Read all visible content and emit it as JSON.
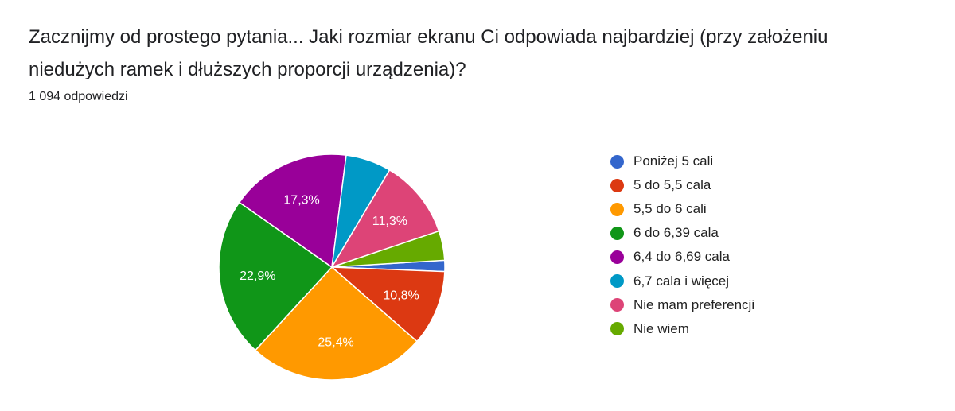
{
  "question": {
    "title": "Zacznijmy od prostego pytania... Jaki rozmiar ekranu Ci odpowiada najbardziej (przy założeniu niedużych ramek i dłuższych proporcji urządzenia)?",
    "response_count": "1 094 odpowiedzi"
  },
  "chart_data": {
    "type": "pie",
    "title": "",
    "legend_position": "right",
    "slices": [
      {
        "label": "Poniżej 5 cali",
        "value": 1.6,
        "color": "#3366cc",
        "data_label": ""
      },
      {
        "label": "5 do 5,5 cala",
        "value": 10.8,
        "color": "#dc3912",
        "data_label": "10,8%"
      },
      {
        "label": "5,5 do 6 cali",
        "value": 25.4,
        "color": "#ff9900",
        "data_label": "25,4%"
      },
      {
        "label": "6 do 6,39 cala",
        "value": 22.9,
        "color": "#109618",
        "data_label": "22,9%"
      },
      {
        "label": "6,4 do 6,69 cala",
        "value": 17.3,
        "color": "#990099",
        "data_label": "17,3%"
      },
      {
        "label": "6,7 cala i więcej",
        "value": 6.5,
        "color": "#0099c6",
        "data_label": ""
      },
      {
        "label": "Nie mam preferencji",
        "value": 11.3,
        "color": "#dd4477",
        "data_label": "11,3%"
      },
      {
        "label": "Nie wiem",
        "value": 4.2,
        "color": "#66aa00",
        "data_label": ""
      }
    ]
  }
}
